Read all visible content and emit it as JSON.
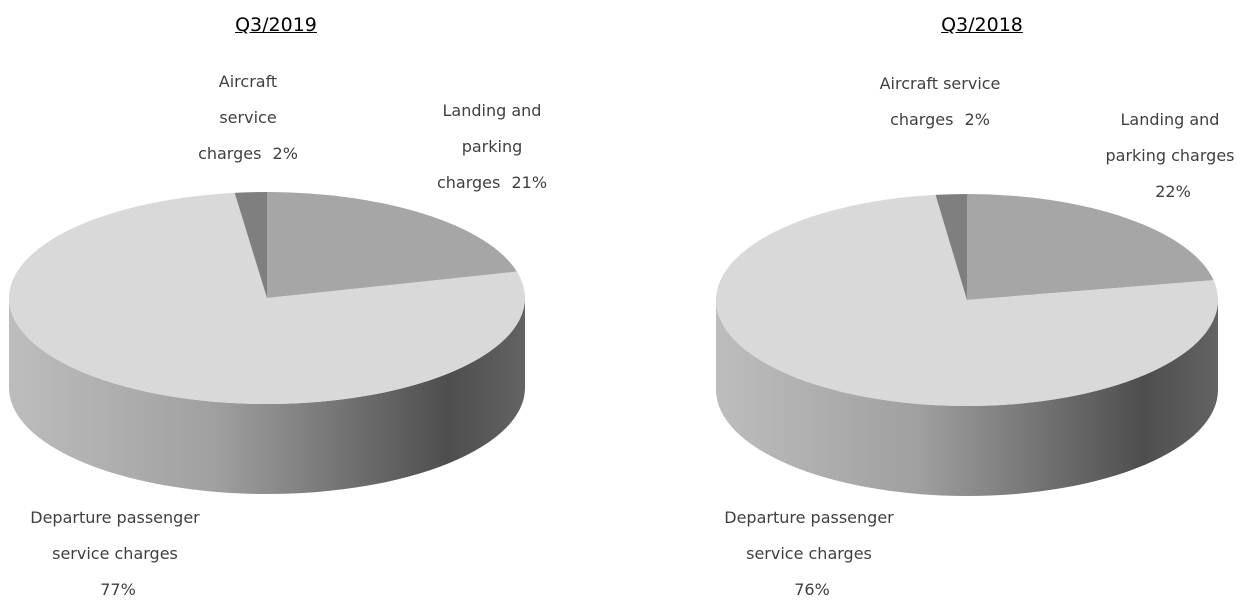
{
  "chart_data": [
    {
      "type": "pie",
      "title": "Q3/2019",
      "categories": [
        "Landing and parking charges",
        "Departure passenger service charges",
        "Aircraft service charges"
      ],
      "values": [
        21,
        77,
        2
      ],
      "value_labels": [
        "21%",
        "77%",
        "2%"
      ],
      "colors": [
        "#a6a6a6",
        "#d9d9d9",
        "#7f7f7f"
      ]
    },
    {
      "type": "pie",
      "title": "Q3/2018",
      "categories": [
        "Landing and parking charges",
        "Departure passenger service charges",
        "Aircraft service charges"
      ],
      "values": [
        22,
        76,
        2
      ],
      "value_labels": [
        "22%",
        "76%",
        "2%"
      ],
      "colors": [
        "#a6a6a6",
        "#d9d9d9",
        "#7f7f7f"
      ]
    }
  ]
}
